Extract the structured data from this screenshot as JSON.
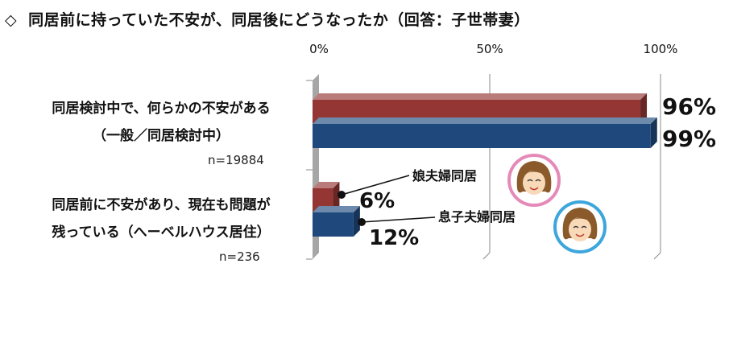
{
  "title": {
    "mark": "◇",
    "text": "同居前に持っていた不安が、同居後にどうなったか（回答：子世帯妻）"
  },
  "categories": [
    {
      "line1": "同居検討中で、何らかの不安がある",
      "line2": "（一般／同居検討中）",
      "n": "n=19884"
    },
    {
      "line1": "同居前に不安があり、現在も問題が",
      "line2": "残っている（へーベルハウス居住）",
      "n": "n=236"
    }
  ],
  "callouts": {
    "wife_parents": "娘夫婦同居",
    "husband_parents": "息子夫婦同居"
  },
  "chart_data": {
    "type": "bar",
    "orientation": "horizontal",
    "categories": [
      "同居検討中で、何らかの不安がある（一般／同居検討中）",
      "同居前に不安があり、現在も問題が残っている（へーベルハウス居住）"
    ],
    "series": [
      {
        "name": "娘夫婦同居",
        "values": [
          96,
          6
        ],
        "labels": [
          "96%",
          "6%"
        ],
        "color": "#943634"
      },
      {
        "name": "息子夫婦同居",
        "values": [
          99,
          12
        ],
        "labels": [
          "99%",
          "12%"
        ],
        "color": "#1F497D"
      }
    ],
    "xlim": [
      0,
      100
    ],
    "ticks": [
      "0%",
      "50%",
      "100%"
    ],
    "grid": true,
    "legend": "callouts"
  },
  "colors": {
    "red": "#943634",
    "blue": "#1F497D",
    "pink_ring": "#E58AB8",
    "blue_ring": "#3DA6DC"
  },
  "icons": [
    "woman-face-icon-pink",
    "woman-face-icon-blue"
  ]
}
